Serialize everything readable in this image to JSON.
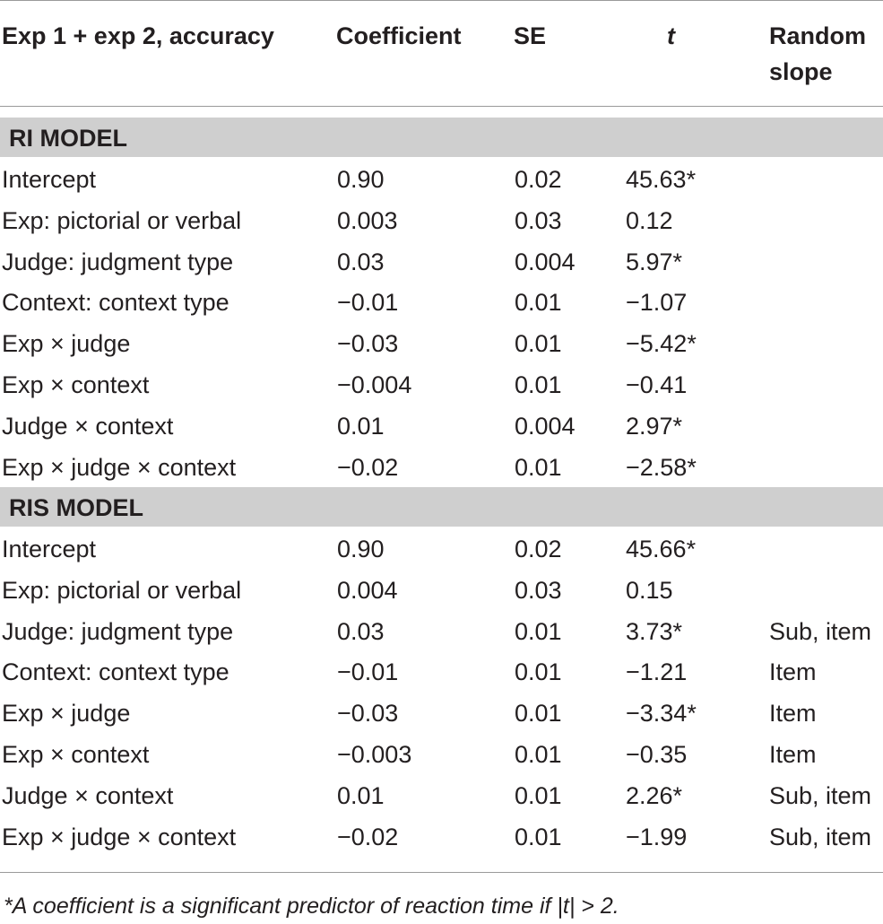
{
  "header": {
    "col_predictor": "Exp 1 + exp 2, accuracy",
    "col_coefficient": "Coefficient",
    "col_se": "SE",
    "col_t": "t",
    "col_random_slope": "Random slope"
  },
  "sections": [
    {
      "title": "RI MODEL",
      "rows": [
        {
          "label": "Intercept",
          "coef": "0.90",
          "se": "0.02",
          "t": "45.63*",
          "slope": ""
        },
        {
          "label": "Exp: pictorial or verbal",
          "coef": "0.003",
          "se": "0.03",
          "t": "0.12",
          "slope": ""
        },
        {
          "label": "Judge: judgment type",
          "coef": "0.03",
          "se": "0.004",
          "t": "5.97*",
          "slope": ""
        },
        {
          "label": "Context: context type",
          "coef": "−0.01",
          "se": "0.01",
          "t": "−1.07",
          "slope": ""
        },
        {
          "label": "Exp × judge",
          "coef": "−0.03",
          "se": "0.01",
          "t": "−5.42*",
          "slope": ""
        },
        {
          "label": "Exp × context",
          "coef": "−0.004",
          "se": "0.01",
          "t": "−0.41",
          "slope": ""
        },
        {
          "label": "Judge × context",
          "coef": "0.01",
          "se": "0.004",
          "t": "2.97*",
          "slope": ""
        },
        {
          "label": "Exp × judge × context",
          "coef": "−0.02",
          "se": "0.01",
          "t": "−2.58*",
          "slope": ""
        }
      ]
    },
    {
      "title": "RIS MODEL",
      "rows": [
        {
          "label": "Intercept",
          "coef": "0.90",
          "se": "0.02",
          "t": "45.66*",
          "slope": ""
        },
        {
          "label": "Exp: pictorial or verbal",
          "coef": "0.004",
          "se": "0.03",
          "t": "0.15",
          "slope": ""
        },
        {
          "label": "Judge: judgment type",
          "coef": "0.03",
          "se": "0.01",
          "t": "3.73*",
          "slope": "Sub, item"
        },
        {
          "label": "Context: context type",
          "coef": "−0.01",
          "se": "0.01",
          "t": "−1.21",
          "slope": "Item"
        },
        {
          "label": "Exp × judge",
          "coef": "−0.03",
          "se": "0.01",
          "t": "−3.34*",
          "slope": "Item"
        },
        {
          "label": "Exp × context",
          "coef": "−0.003",
          "se": "0.01",
          "t": "−0.35",
          "slope": "Item"
        },
        {
          "label": "Judge × context",
          "coef": "0.01",
          "se": "0.01",
          "t": "2.26*",
          "slope": "Sub, item"
        },
        {
          "label": "Exp × judge × context",
          "coef": "−0.02",
          "se": "0.01",
          "t": "−1.99",
          "slope": "Sub, item"
        }
      ]
    }
  ],
  "footnote": "*A coefficient is a significant predictor of reaction time if |t| > 2."
}
